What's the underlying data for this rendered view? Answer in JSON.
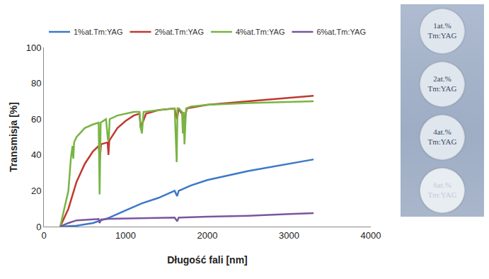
{
  "chart_data": {
    "type": "line",
    "x_label": "Długość fali [nm]",
    "y_label": "Transmisja [%]",
    "xlim": [
      0,
      4000
    ],
    "xticks": [
      0,
      1000,
      2000,
      3000,
      4000
    ],
    "ylim": [
      0,
      100
    ],
    "yticks": [
      0,
      20,
      40,
      60,
      80,
      100
    ],
    "grid": false,
    "legend": "top",
    "series": [
      {
        "name": "1%at.Tm:YAG",
        "color": "#3c78c8",
        "x": [
          200,
          400,
          600,
          800,
          1000,
          1200,
          1400,
          1600,
          1630,
          1650,
          1800,
          2000,
          2500,
          3000,
          3300
        ],
        "values": [
          0,
          0.5,
          2,
          5,
          9,
          13,
          16,
          20,
          17,
          20,
          23,
          26,
          31,
          35,
          37.5
        ]
      },
      {
        "name": "2%at.Tm:YAG",
        "color": "#c0392f",
        "x": [
          200,
          300,
          400,
          500,
          600,
          670,
          685,
          700,
          780,
          790,
          800,
          900,
          1000,
          1100,
          1170,
          1185,
          1200,
          1250,
          1400,
          1600,
          1630,
          1650,
          1700,
          1720,
          1750,
          2000,
          2500,
          3000,
          3300
        ],
        "values": [
          0,
          10,
          25,
          35,
          42,
          45,
          38,
          46,
          47,
          40,
          48,
          55,
          59,
          62,
          63,
          55,
          57,
          63,
          65,
          66,
          60,
          66,
          62,
          60,
          66,
          68,
          70,
          72,
          73
        ]
      },
      {
        "name": "4%at.Tm:YAG",
        "color": "#78b443",
        "x": [
          200,
          250,
          300,
          330,
          350,
          360,
          370,
          400,
          500,
          600,
          670,
          682,
          695,
          760,
          785,
          795,
          805,
          900,
          1000,
          1100,
          1170,
          1185,
          1200,
          1220,
          1400,
          1600,
          1625,
          1635,
          1650,
          1690,
          1700,
          1710,
          1720,
          1740,
          1800,
          2000,
          2500,
          3000,
          3300
        ],
        "values": [
          0,
          10,
          20,
          38,
          45,
          38,
          47,
          50,
          55,
          57,
          58,
          18,
          58,
          60,
          48,
          50,
          60,
          62,
          63,
          64,
          64,
          55,
          52,
          64,
          65,
          66,
          36,
          66,
          66,
          64,
          52,
          64,
          46,
          66,
          67,
          68,
          69,
          69.5,
          70
        ]
      },
      {
        "name": "6%at.Tm:YAG",
        "color": "#7a569e",
        "x": [
          200,
          300,
          400,
          600,
          670,
          682,
          700,
          800,
          1000,
          1200,
          1600,
          1630,
          1650,
          2000,
          2500,
          3000,
          3300
        ],
        "values": [
          0,
          2,
          3.5,
          4,
          4.2,
          2,
          4,
          4.3,
          4.5,
          4.8,
          5,
          3,
          5,
          5.5,
          6,
          7,
          7.5
        ]
      }
    ]
  },
  "samples": {
    "labels": [
      [
        "1at.%",
        "Tm:YAG"
      ],
      [
        "2at.%",
        "Tm:YAG"
      ],
      [
        "4at.%",
        "Tm:YAG"
      ],
      [
        "6at.%",
        "Tm:YAG"
      ]
    ]
  }
}
